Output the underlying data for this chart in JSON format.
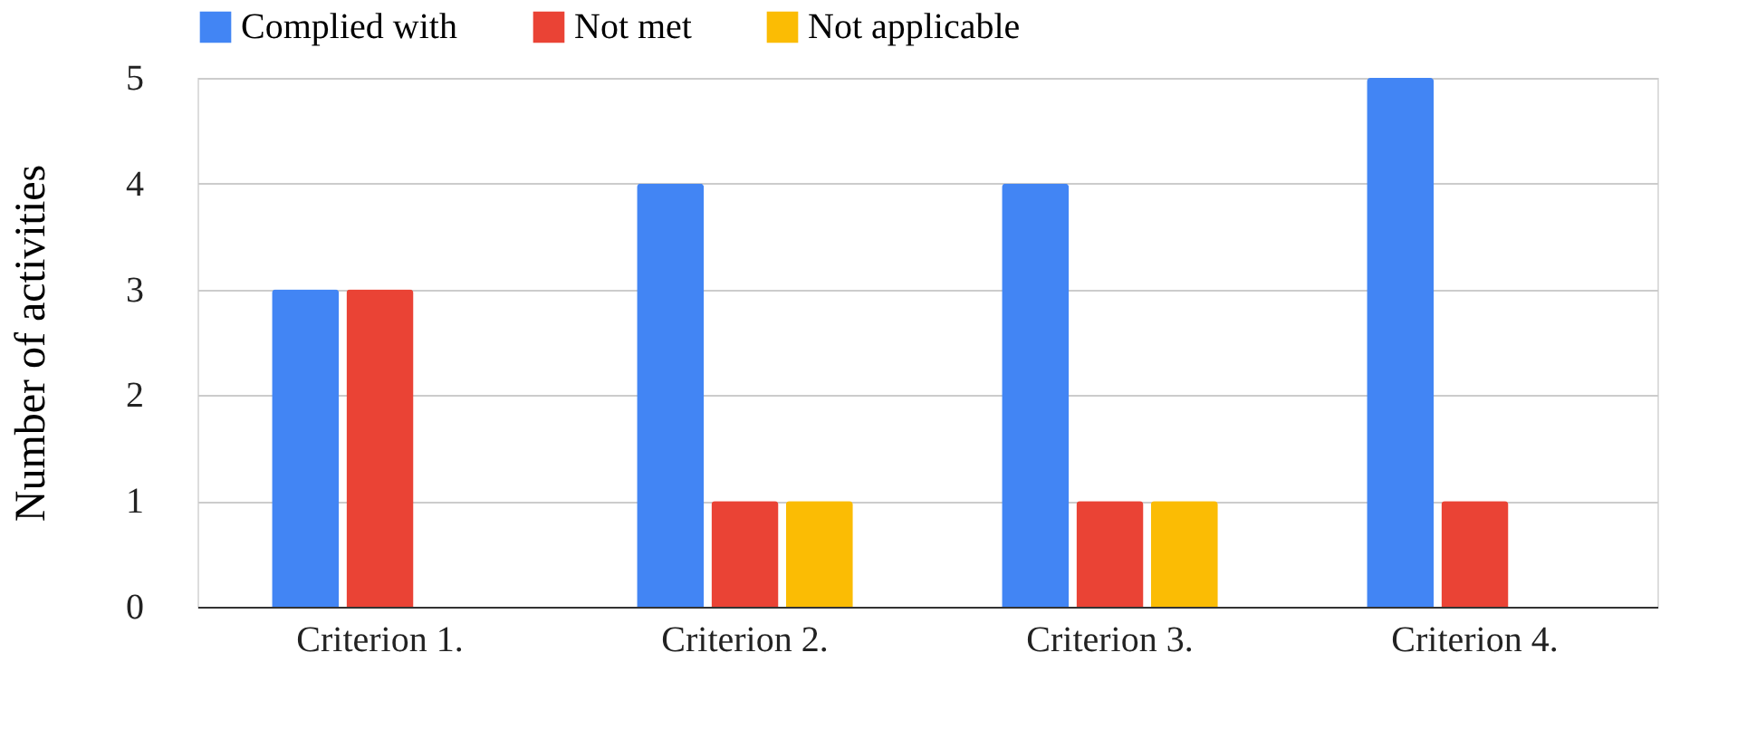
{
  "chart_data": {
    "type": "bar",
    "ylabel": "Number of activities",
    "categories": [
      "Criterion 1.",
      "Criterion 2.",
      "Criterion 3.",
      "Criterion 4."
    ],
    "series": [
      {
        "name": "Complied with",
        "color": "#4285f4",
        "values": [
          3,
          4,
          4,
          5
        ]
      },
      {
        "name": "Not met",
        "color": "#ea4335",
        "values": [
          3,
          1,
          1,
          1
        ]
      },
      {
        "name": "Not applicable",
        "color": "#fbbc04",
        "values": [
          0,
          1,
          1,
          0
        ]
      }
    ],
    "ylim": [
      0,
      5
    ],
    "yticks": [
      0,
      1,
      2,
      3,
      4,
      5
    ],
    "grid": "y",
    "legend": "top"
  }
}
